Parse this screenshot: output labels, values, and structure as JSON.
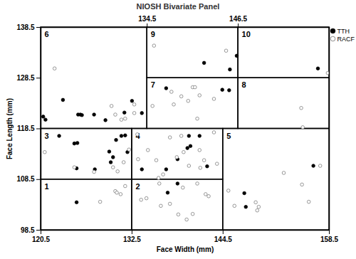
{
  "chart_data": {
    "type": "scatter",
    "title": "NIOSH Bivariate Panel",
    "x_label": "Face Width (mm)",
    "y_label": "Face Length (mm)",
    "xlim": [
      120.5,
      158.5
    ],
    "xticks": [
      120.5,
      132.5,
      144.5,
      158.5
    ],
    "x2ticks": [
      134.5,
      146.5
    ],
    "ylim": [
      98.5,
      138.5
    ],
    "yticks": [
      98.5,
      108.5,
      118.5,
      128.5,
      138.5
    ],
    "legend": "top right",
    "panels": [
      {
        "label": 1,
        "x": [
          120.5,
          132.5
        ],
        "y": [
          98.5,
          108.5
        ]
      },
      {
        "label": 2,
        "x": [
          132.5,
          144.5
        ],
        "y": [
          98.5,
          108.5
        ]
      },
      {
        "label": 3,
        "x": [
          120.5,
          132.5
        ],
        "y": [
          108.5,
          118.5
        ]
      },
      {
        "label": 4,
        "x": [
          132.5,
          144.5
        ],
        "y": [
          108.5,
          118.5
        ]
      },
      {
        "label": 5,
        "x": [
          144.5,
          158.5
        ],
        "y": [
          98.5,
          118.5
        ]
      },
      {
        "label": 6,
        "x": [
          120.5,
          134.5
        ],
        "y": [
          118.5,
          138.5
        ]
      },
      {
        "label": 7,
        "x": [
          134.5,
          146.5
        ],
        "y": [
          118.5,
          128.5
        ]
      },
      {
        "label": 8,
        "x": [
          146.5,
          158.5
        ],
        "y": [
          118.5,
          128.5
        ]
      },
      {
        "label": 9,
        "x": [
          134.5,
          146.5
        ],
        "y": [
          128.5,
          138.5
        ]
      },
      {
        "label": 10,
        "x": [
          146.5,
          158.5
        ],
        "y": [
          128.5,
          138.5
        ]
      }
    ],
    "series": [
      {
        "name": "TTH",
        "color": "#000000",
        "marker": "filled",
        "x": [
          120.8,
          121.1,
          123.4,
          125.4,
          125.7,
          125.9,
          127.5,
          129.0,
          131.5,
          132.5,
          133.8,
          142.0,
          146.3,
          145.4,
          157.0,
          137.0,
          144.4,
          145.3,
          122.9,
          124.9,
          125.3,
          125.2,
          127.6,
          129.5,
          129.7,
          130.0,
          131.1,
          131.6,
          130.4,
          131.9,
          133.8,
          137.0,
          139.8,
          140.0,
          140.2,
          141.4,
          142.4,
          138.5,
          137.2,
          138.5,
          125.2,
          147.3,
          147.5,
          156.4
        ],
        "y": [
          120.9,
          120.3,
          124.2,
          121.3,
          121.3,
          121.2,
          121.3,
          120.2,
          121.7,
          124.0,
          121.6,
          131.5,
          132.9,
          130.2,
          130.4,
          126.5,
          126.2,
          126.1,
          117.1,
          115.6,
          115.7,
          110.7,
          110.5,
          114.0,
          111.9,
          112.9,
          117.1,
          117.2,
          116.3,
          113.9,
          110.5,
          110.5,
          114.7,
          117.1,
          115.1,
          117.1,
          111.1,
          112.5,
          105.9,
          107.7,
          104.0,
          105.8,
          103.1,
          111.2
        ]
      },
      {
        "name": "RACF",
        "color": "#7f7f7f",
        "marker": "open",
        "x": [
          122.3,
          129.8,
          130.3,
          131.1,
          131.6,
          132.8,
          132.8,
          135.4,
          144.9,
          158.3,
          135.2,
          138.0,
          137.7,
          139.0,
          139.9,
          140.5,
          140.8,
          141.4,
          141.1,
          143.3,
          154.8,
          155.0,
          121.0,
          124.9,
          127.5,
          130.0,
          130.6,
          131.4,
          132.1,
          133.2,
          133.3,
          134.6,
          135.7,
          136.6,
          137.5,
          138.4,
          139.0,
          139.3,
          140.0,
          141.4,
          142.0,
          143.3,
          143.7,
          141.5,
          133.7,
          134.4,
          136.1,
          136.3,
          137.5,
          139.2,
          138.6,
          139.7,
          140.5,
          142.2,
          142.6,
          141.1,
          136.0,
          128.3,
          130.3,
          130.5,
          131.6,
          131.0,
          145.2,
          146.0,
          148.8,
          149.0,
          149.2,
          152.5,
          154.9,
          157.3,
          155.8
        ],
        "y": [
          130.4,
          123.0,
          121.3,
          120.3,
          120.5,
          123.3,
          121.6,
          134.9,
          133.9,
          129.5,
          123.0,
          123.3,
          125.8,
          124.9,
          124.0,
          126.7,
          126.7,
          125.1,
          120.5,
          124.4,
          122.6,
          118.8,
          113.9,
          110.9,
          110.0,
          110.9,
          110.1,
          111.9,
          114.4,
          117.4,
          112.5,
          114.3,
          112.3,
          109.5,
          116.8,
          112.9,
          117.1,
          113.9,
          111.2,
          114.3,
          112.3,
          117.8,
          111.6,
          110.8,
          104.5,
          104.8,
          107.7,
          103.3,
          103.7,
          106.9,
          101.6,
          100.6,
          101.7,
          105.6,
          105.2,
          107.7,
          108.8,
          104.1,
          106.2,
          105.9,
          107.2,
          105.6,
          106.3,
          103.3,
          104.0,
          102.4,
          103.1,
          109.8,
          107.5,
          111.2,
          104.1
        ]
      }
    ]
  }
}
